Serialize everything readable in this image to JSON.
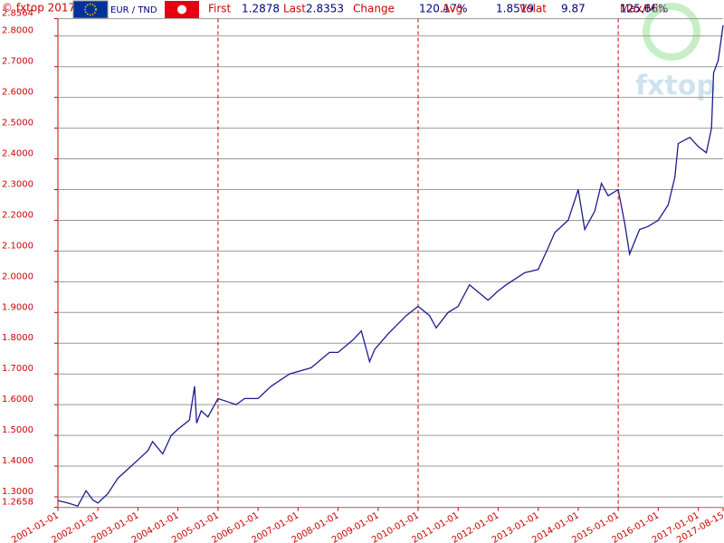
{
  "header": {
    "copyright": "© fxtop 2017",
    "pair": "EUR / TND",
    "stats": [
      {
        "label": "First",
        "value": "1.2878"
      },
      {
        "label": "Last",
        "value": "2.8353"
      },
      {
        "label": "Change",
        "value": "120.17%"
      },
      {
        "label": "Avg",
        "value": "1.8519"
      },
      {
        "label": "Volat",
        "value": "9.87"
      },
      {
        "label": "Max/Min",
        "value": "125.66%"
      }
    ],
    "watermark": "fxtop"
  },
  "chart_data": {
    "type": "line",
    "x": [
      "2001-01-01",
      "2001-04-01",
      "2001-07-01",
      "2001-09-15",
      "2001-11-15",
      "2002-01-01",
      "2002-04-01",
      "2002-07-01",
      "2002-10-01",
      "2003-01-01",
      "2003-04-01",
      "2003-05-15",
      "2003-08-15",
      "2003-11-01",
      "2004-01-01",
      "2004-04-15",
      "2004-06-01",
      "2004-06-20",
      "2004-08-01",
      "2004-10-01",
      "2005-01-01",
      "2005-06-15",
      "2005-09-01",
      "2006-01-01",
      "2006-05-01",
      "2006-10-15",
      "2007-05-01",
      "2007-10-15",
      "2008-01-01",
      "2008-05-15",
      "2008-08-01",
      "2008-10-15",
      "2008-12-01",
      "2009-04-01",
      "2009-09-15",
      "2010-01-01",
      "2010-04-15",
      "2010-06-15",
      "2010-10-01",
      "2011-01-01",
      "2011-04-15",
      "2011-10-01",
      "2012-01-01",
      "2012-03-15",
      "2012-09-01",
      "2013-01-01",
      "2013-04-01",
      "2013-06-01",
      "2013-10-01",
      "2014-01-01",
      "2014-03-01",
      "2014-06-01",
      "2014-08-01",
      "2014-10-01",
      "2015-01-01",
      "2015-03-01",
      "2015-04-15",
      "2015-07-15",
      "2015-10-01",
      "2016-01-01",
      "2016-04-01",
      "2016-06-01",
      "2016-07-01",
      "2016-10-15",
      "2017-01-01",
      "2017-03-15",
      "2017-05-01",
      "2017-05-20",
      "2017-07-01",
      "2017-08-15"
    ],
    "series": [
      {
        "name": "EUR / TND",
        "color": "#1c1c8f",
        "values": [
          1.2878,
          1.28,
          1.27,
          1.32,
          1.29,
          1.28,
          1.31,
          1.36,
          1.39,
          1.42,
          1.45,
          1.48,
          1.44,
          1.5,
          1.52,
          1.55,
          1.66,
          1.54,
          1.58,
          1.56,
          1.62,
          1.6,
          1.62,
          1.62,
          1.66,
          1.7,
          1.72,
          1.77,
          1.77,
          1.81,
          1.84,
          1.74,
          1.78,
          1.83,
          1.89,
          1.92,
          1.89,
          1.85,
          1.9,
          1.92,
          1.99,
          1.94,
          1.97,
          1.99,
          2.03,
          2.04,
          2.11,
          2.16,
          2.2,
          2.3,
          2.17,
          2.23,
          2.32,
          2.28,
          2.3,
          2.19,
          2.09,
          2.17,
          2.18,
          2.2,
          2.25,
          2.34,
          2.45,
          2.47,
          2.44,
          2.42,
          2.5,
          2.68,
          2.72,
          2.8353
        ]
      }
    ],
    "xlim": [
      "2001-01-01",
      "2017-08-15"
    ],
    "xticks": [
      "2001-01-01",
      "2002-01-01",
      "2003-01-01",
      "2004-01-01",
      "2005-01-01",
      "2006-01-01",
      "2007-01-01",
      "2008-01-01",
      "2009-01-01",
      "2010-01-01",
      "2011-01-01",
      "2012-01-01",
      "2013-01-01",
      "2014-01-01",
      "2015-01-01",
      "2016-01-01",
      "2017-01-01",
      "2017-08-15"
    ],
    "x_grid_lines": [
      "2005-01-01",
      "2010-01-01",
      "2015-01-01"
    ],
    "ylim": [
      1.2658,
      2.8564
    ],
    "yticks": [
      {
        "value": 1.2658,
        "label": "1.2658"
      },
      {
        "value": 1.3,
        "label": "1.3000"
      },
      {
        "value": 1.4,
        "label": "1.4000"
      },
      {
        "value": 1.5,
        "label": "1.5000"
      },
      {
        "value": 1.6,
        "label": "1.6000"
      },
      {
        "value": 1.7,
        "label": "1.7000"
      },
      {
        "value": 1.8,
        "label": "1.8000"
      },
      {
        "value": 1.9,
        "label": "1.9000"
      },
      {
        "value": 2.0,
        "label": "2.0000"
      },
      {
        "value": 2.1,
        "label": "2.1000"
      },
      {
        "value": 2.2,
        "label": "2.2000"
      },
      {
        "value": 2.3,
        "label": "2.3000"
      },
      {
        "value": 2.4,
        "label": "2.4000"
      },
      {
        "value": 2.5,
        "label": "2.5000"
      },
      {
        "value": 2.6,
        "label": "2.6000"
      },
      {
        "value": 2.7,
        "label": "2.7000"
      },
      {
        "value": 2.8,
        "label": "2.8000"
      },
      {
        "value": 2.8564,
        "label": "2.8564"
      }
    ],
    "grid": true
  }
}
